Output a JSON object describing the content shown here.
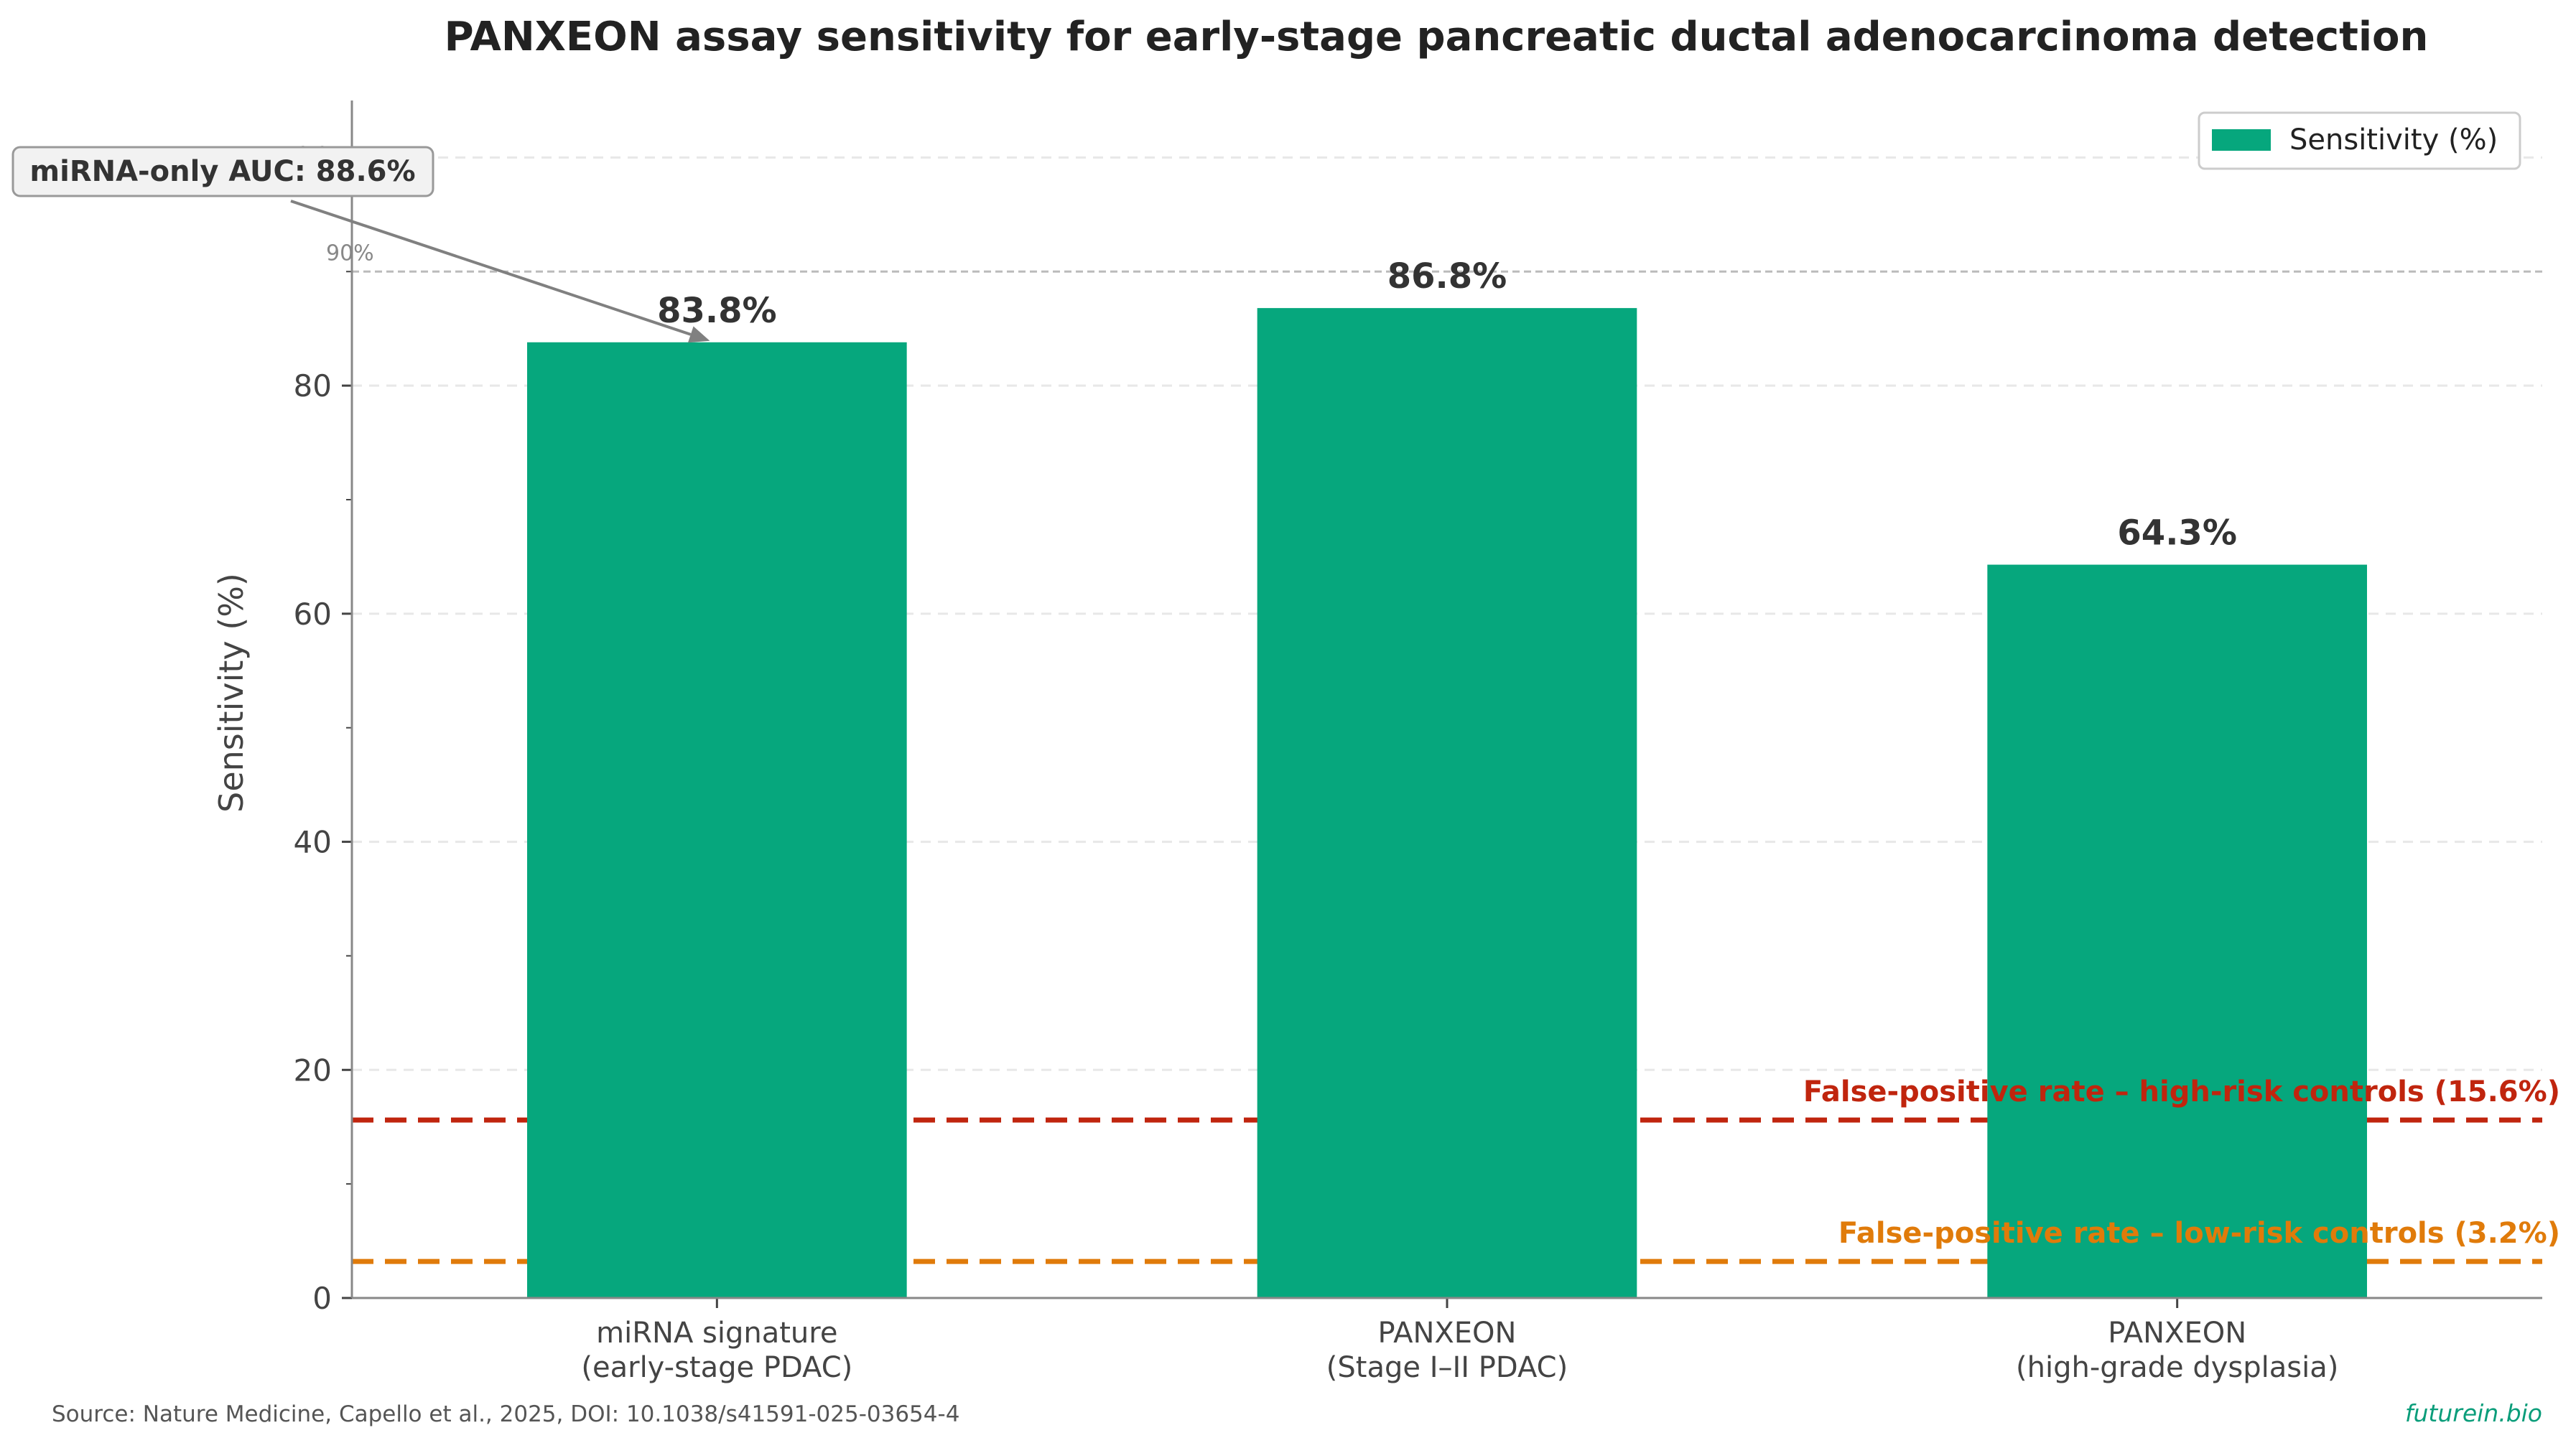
{
  "chart_data": {
    "type": "bar",
    "title": "PANXEON assay sensitivity for early-stage pancreatic ductal adenocarcinoma detection",
    "ylabel": "Sensitivity (%)",
    "xlabel": "",
    "ylim": [
      0,
      105
    ],
    "yticks": [
      0,
      20,
      40,
      60,
      80,
      100
    ],
    "grid": true,
    "legend": {
      "position": "top-right",
      "label": "Sensitivity (%)"
    },
    "categories": [
      [
        "miRNA signature",
        "(early-stage PDAC)"
      ],
      [
        "PANXEON",
        "(Stage I–II PDAC)"
      ],
      [
        "PANXEON",
        "(high-grade dysplasia)"
      ]
    ],
    "series": [
      {
        "name": "Sensitivity (%)",
        "values": [
          83.8,
          86.8,
          64.3
        ],
        "color": "#06a77d"
      }
    ],
    "value_labels": [
      "83.8%",
      "86.8%",
      "64.3%"
    ],
    "reference_lines": [
      {
        "y": 90,
        "label": "90%",
        "color": "#bbbbbb"
      },
      {
        "y": 15.6,
        "label": "False-positive rate – high-risk controls (15.6%)",
        "color": "#c0250e"
      },
      {
        "y": 3.2,
        "label": "False-positive rate – low-risk controls (3.2%)",
        "color": "#e07b0a"
      }
    ],
    "annotation": {
      "text": "miRNA-only AUC: 88.6%",
      "points_to_category": 0
    }
  },
  "footer": {
    "source": "Source: Nature Medicine, Capello et al., 2025, DOI: 10.1038/s41591-025-03654-4",
    "brand": "futurein.bio",
    "brand_color": "#0a9d7a"
  }
}
